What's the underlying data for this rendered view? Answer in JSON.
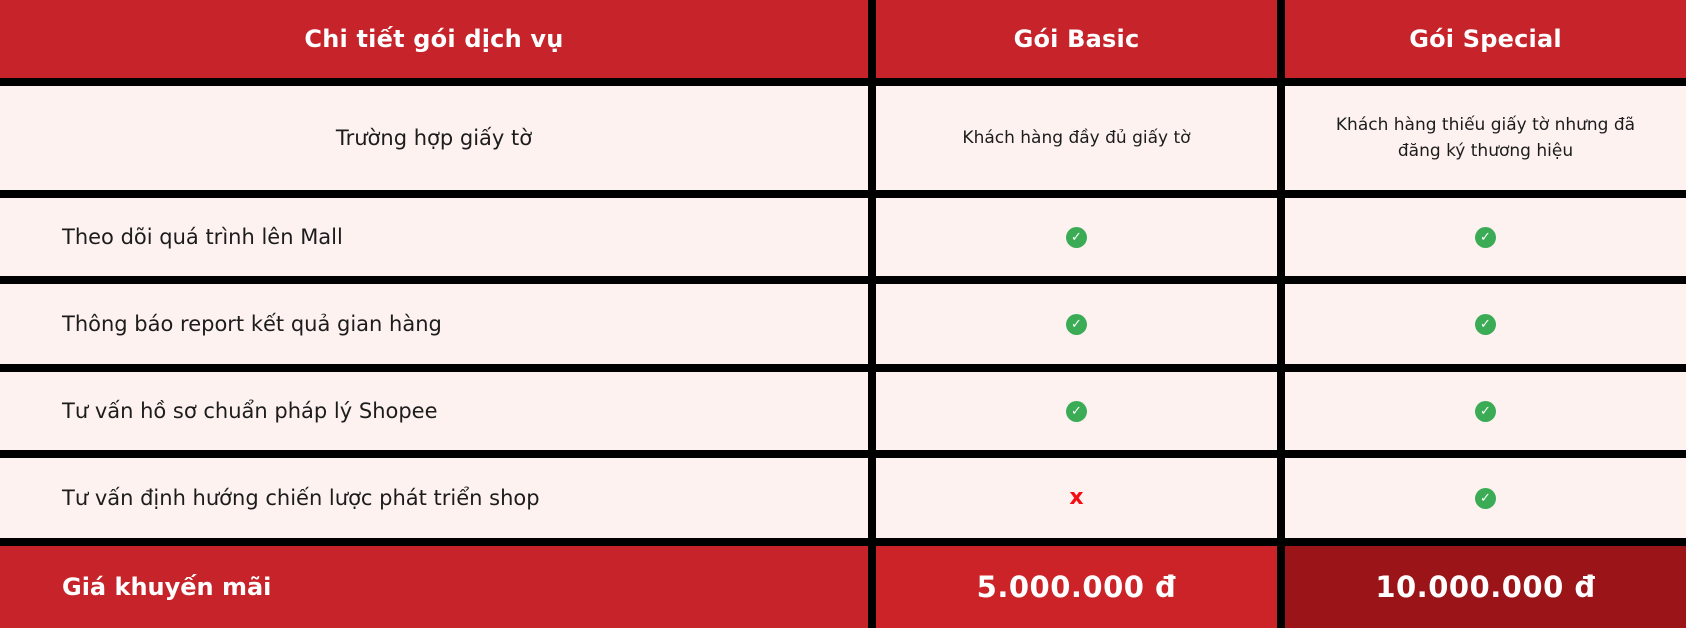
{
  "chart_data": {
    "type": "table",
    "title": "Chi tiết gói dịch vụ",
    "columns": [
      "Chi tiết gói dịch vụ",
      "Gói Basic",
      "Gói Special"
    ],
    "rows": [
      [
        "Trường hợp giấy tờ",
        "Khách hàng đầy đủ giấy tờ",
        "Khách hàng thiếu giấy tờ nhưng đã đăng ký thương hiệu"
      ],
      [
        "Theo dõi quá trình lên Mall",
        "✓",
        "✓"
      ],
      [
        "Thông báo report kết quả gian hàng",
        "✓",
        "✓"
      ],
      [
        "Tư vấn hồ sơ chuẩn pháp lý Shopee",
        "✓",
        "✓"
      ],
      [
        "Tư vấn định hướng chiến lược phát triển shop",
        "✗",
        "✓"
      ],
      [
        "Giá khuyến mãi",
        "5.000.000 đ",
        "10.000.000 đ"
      ]
    ],
    "legend_position": "none",
    "grid": "black gridlines between cells"
  },
  "table": {
    "header": {
      "col1": "Chi tiết gói dịch vụ",
      "col2": "Gói Basic",
      "col3": "Gói Special"
    },
    "rows": [
      {
        "label": "Trường hợp giấy tờ",
        "basic": "Khách hàng đầy đủ giấy tờ",
        "special": "Khách hàng thiếu giấy tờ nhưng đã đăng ký thương hiệu"
      },
      {
        "label": "Theo dõi quá trình lên Mall",
        "basic": "check",
        "special": "check"
      },
      {
        "label": "Thông báo report kết quả gian hàng",
        "basic": "check",
        "special": "check"
      },
      {
        "label": "Tư vấn hồ sơ chuẩn pháp lý Shopee",
        "basic": "check",
        "special": "check"
      },
      {
        "label": "Tư vấn định hướng chiến lược phát triển shop",
        "basic": "cross",
        "special": "check"
      }
    ],
    "footer": {
      "label": "Giá khuyến mãi",
      "basic_price": "5.000.000 đ",
      "special_price": "10.000.000 đ"
    },
    "icons": {
      "check_name": "check-circle-icon",
      "check_glyph": "✓",
      "cross_name": "x-mark-icon",
      "cross_glyph": "x"
    }
  },
  "colors": {
    "red_primary": "#C6232A",
    "red_basic_price": "#CB2328",
    "red_special_dark": "#9A1418",
    "row_bg": "#FDF2F0",
    "grid_black": "#000000",
    "green_check": "#3BAC55",
    "red_cross": "#F50D13",
    "text_dark": "#1C1C1C",
    "text_white": "#FFFFFF"
  }
}
